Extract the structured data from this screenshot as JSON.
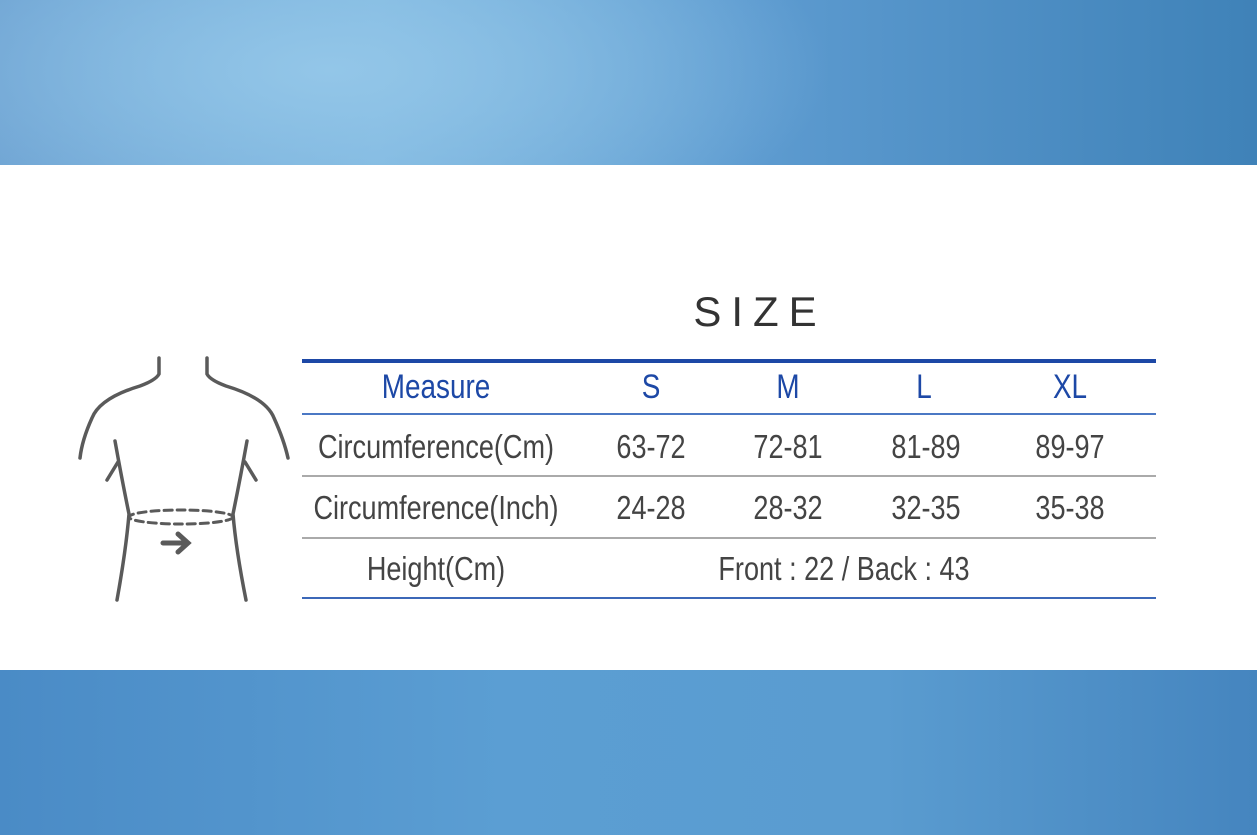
{
  "title": "SIZE",
  "colors": {
    "accent": "#1d48a6",
    "text": "#444444"
  },
  "illustration": "waist-measurement-figure",
  "table": {
    "headers": [
      "Measure",
      "S",
      "M",
      "L",
      "XL"
    ],
    "rows": [
      {
        "label": "Circumference(Cm)",
        "values": [
          "63-72",
          "72-81",
          "81-89",
          "89-97"
        ]
      },
      {
        "label": "Circumference(Inch)",
        "values": [
          "24-28",
          "28-32",
          "32-35",
          "35-38"
        ]
      },
      {
        "label": "Height(Cm)",
        "merged": "Front : 22 / Back : 43"
      }
    ]
  }
}
